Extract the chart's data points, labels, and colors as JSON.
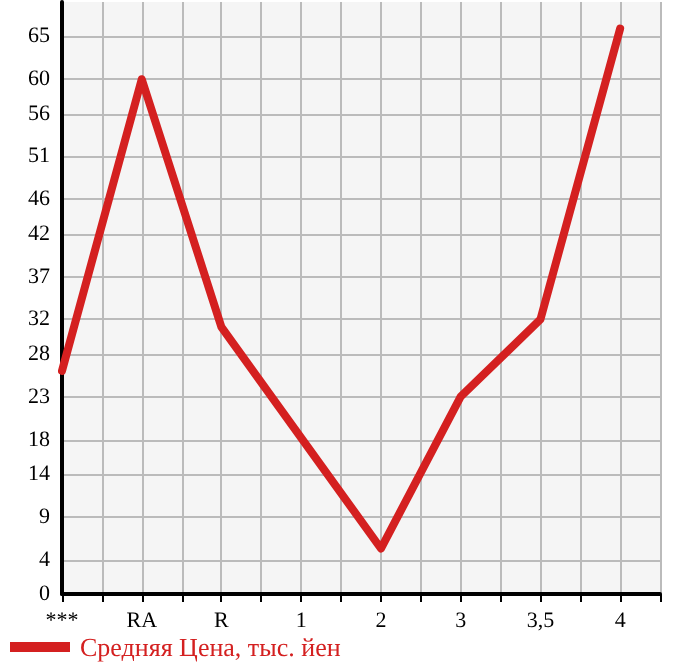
{
  "chart_data": {
    "type": "line",
    "categories": [
      "***",
      "RA",
      "R",
      "1",
      "2",
      "3",
      "3,5",
      "4"
    ],
    "series": [
      {
        "name": "Средняя Цена, тыс. йен",
        "color": "#d42020",
        "values": [
          26.0,
          60,
          31.1,
          18.2,
          5.3,
          23.0,
          32.0,
          65.9
        ]
      }
    ],
    "ylim": [
      0,
      69
    ],
    "yticks": [
      0,
      4,
      9,
      14,
      18,
      23,
      28,
      32,
      37,
      42,
      46,
      51,
      56,
      60,
      65
    ],
    "grid": true,
    "legend": "bottom left",
    "marker": "none",
    "line_style": "solid"
  }
}
